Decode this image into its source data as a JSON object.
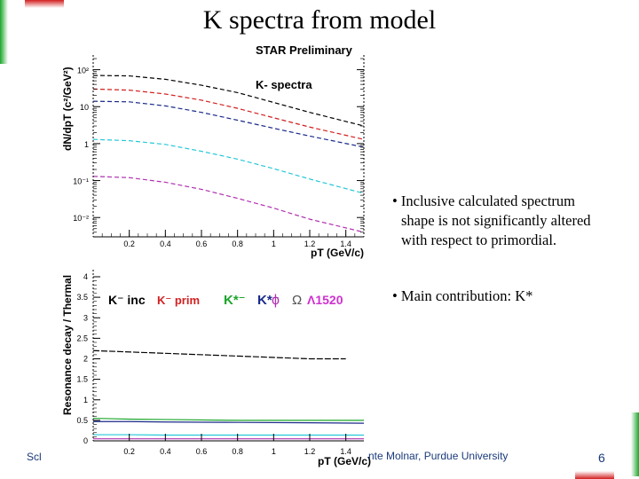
{
  "slide": {
    "title": "K spectra from model",
    "bullets": [
      [
        "• Inclusive calculated spectrum",
        "shape is not significantly altered",
        "with respect to primordial."
      ],
      [
        "• Main contribution: K*"
      ]
    ],
    "footer_left": "Scl",
    "footer_center": "nte Molnar, Purdue University",
    "page_number": "6",
    "colors": {
      "green_bar": "#1aa62a",
      "red_bar": "#d21f1f",
      "footer_text": "#1a3a7a"
    }
  },
  "chart_data": [
    {
      "type": "line",
      "title": "STAR Preliminary",
      "annotation": "K- spectra",
      "xlabel": "pT (GeV/c)",
      "ylabel": "dN/dpT (c²/GeV²)",
      "xlim": [
        0,
        1.5
      ],
      "ylim": [
        0.003,
        250
      ],
      "yscale": "log",
      "x_ticks": [
        "0.2",
        "0.4",
        "0.6",
        "0.8",
        "1",
        "1.2",
        "1.4"
      ],
      "y_ticks": [
        "10⁻²",
        "10⁻¹",
        "1",
        "10",
        "10²"
      ],
      "x": [
        0.0,
        0.2,
        0.4,
        0.6,
        0.8,
        1.0,
        1.2,
        1.5
      ],
      "series": [
        {
          "color": "#000000",
          "values": [
            70,
            68,
            55,
            38,
            24,
            13,
            7,
            3
          ]
        },
        {
          "color": "#d21f1f",
          "values": [
            30,
            28,
            22,
            15,
            9,
            5,
            2.8,
            1.3
          ]
        },
        {
          "color": "#1a2a8a",
          "values": [
            14,
            13.5,
            10.5,
            7,
            4.3,
            2.6,
            1.6,
            0.8
          ]
        },
        {
          "color": "#25c8d8",
          "values": [
            1.3,
            1.2,
            0.95,
            0.62,
            0.38,
            0.21,
            0.11,
            0.045
          ]
        },
        {
          "color": "#b030b0",
          "values": [
            0.13,
            0.12,
            0.09,
            0.058,
            0.033,
            0.018,
            0.009,
            0.004
          ]
        }
      ]
    },
    {
      "type": "line",
      "xlabel": "pT (GeV/c)",
      "ylabel": "Resonance decay / Thermal",
      "xlim": [
        0,
        1.5
      ],
      "ylim": [
        0,
        4
      ],
      "x_ticks": [
        "0.2",
        "0.4",
        "0.6",
        "0.8",
        "1",
        "1.2",
        "1.4"
      ],
      "y_ticks": [
        "0",
        "0.5",
        "1",
        "1.5",
        "2",
        "2.5",
        "3",
        "3.5",
        "4"
      ],
      "legend": [
        "K⁻ inc",
        "K⁻ prim",
        "K*⁻",
        "K*⁻",
        "ϕ",
        "Ω",
        "Λ1520"
      ],
      "legend_colors": [
        "#000000",
        "#d21f1f",
        "#1aa62a",
        "#1a2a8a",
        "#b030b0",
        "#555555",
        "#d030d0"
      ],
      "series": [
        {
          "color": "#000000",
          "x": [
            0.0,
            0.3,
            1.2,
            1.4
          ],
          "values": [
            2.2,
            2.15,
            2.0,
            2.0
          ]
        },
        {
          "color": "#1aa62a",
          "x": [
            0.0,
            0.2,
            0.4,
            0.8,
            1.2,
            1.5
          ],
          "values": [
            0.55,
            0.53,
            0.52,
            0.5,
            0.5,
            0.5
          ]
        },
        {
          "color": "#1a2a8a",
          "x": [
            0.0,
            0.2,
            0.4,
            0.8,
            1.2,
            1.5
          ],
          "values": [
            0.47,
            0.47,
            0.46,
            0.45,
            0.44,
            0.43
          ]
        },
        {
          "color": "#25c8d8",
          "x": [
            0.0,
            0.2,
            0.4,
            0.8,
            1.2,
            1.5
          ],
          "values": [
            0.15,
            0.15,
            0.14,
            0.14,
            0.14,
            0.14
          ]
        },
        {
          "color": "#b030b0",
          "x": [
            0.0,
            0.4,
            0.8,
            1.2,
            1.5
          ],
          "values": [
            0.05,
            0.05,
            0.05,
            0.05,
            0.05
          ]
        }
      ]
    }
  ]
}
